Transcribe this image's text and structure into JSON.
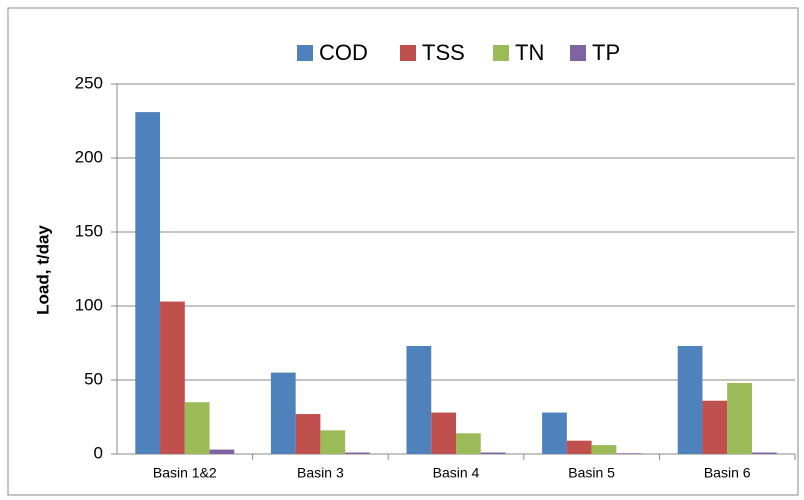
{
  "chart_data": {
    "type": "bar",
    "categories": [
      "Basin 1&2",
      "Basin 3",
      "Basin 4",
      "Basin 5",
      "Basin 6"
    ],
    "series": [
      {
        "name": "COD",
        "color": "#4f81bd",
        "values": [
          231,
          55,
          73,
          28,
          73
        ]
      },
      {
        "name": "TSS",
        "color": "#c0504d",
        "values": [
          103,
          27,
          28,
          9,
          36
        ]
      },
      {
        "name": "TN",
        "color": "#9bbb59",
        "values": [
          35,
          16,
          14,
          6,
          48
        ]
      },
      {
        "name": "TP",
        "color": "#8064a2",
        "values": [
          3,
          1,
          1,
          0.5,
          1
        ]
      }
    ],
    "y_label": "Load, t/day",
    "ylim": [
      0,
      250
    ],
    "yticks": [
      0,
      50,
      100,
      150,
      200,
      250
    ],
    "grid": true,
    "legend": "top"
  }
}
